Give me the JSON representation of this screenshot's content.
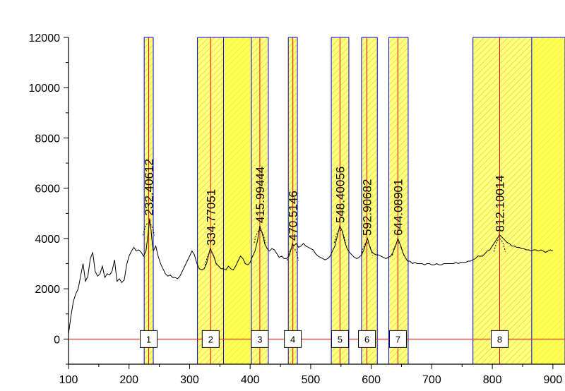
{
  "chart_data": {
    "type": "line",
    "title": "",
    "xlabel": "",
    "ylabel": "",
    "xlim": [
      100,
      920
    ],
    "ylim": [
      -1000,
      12000
    ],
    "xticks": [
      100,
      200,
      300,
      400,
      500,
      600,
      700,
      800,
      900
    ],
    "yticks": [
      0,
      2000,
      4000,
      6000,
      8000,
      10000,
      12000
    ],
    "series": [
      {
        "values": [
          [
            100,
            200
          ],
          [
            104,
            900
          ],
          [
            108,
            1500
          ],
          [
            112,
            1800
          ],
          [
            116,
            2000
          ],
          [
            120,
            2500
          ],
          [
            124,
            3000
          ],
          [
            128,
            2300
          ],
          [
            132,
            2500
          ],
          [
            136,
            3200
          ],
          [
            140,
            3450
          ],
          [
            144,
            2700
          ],
          [
            148,
            2500
          ],
          [
            152,
            2600
          ],
          [
            156,
            2900
          ],
          [
            160,
            2450
          ],
          [
            164,
            2600
          ],
          [
            168,
            2550
          ],
          [
            172,
            2700
          ],
          [
            176,
            3150
          ],
          [
            180,
            2300
          ],
          [
            184,
            2400
          ],
          [
            188,
            2250
          ],
          [
            192,
            2350
          ],
          [
            196,
            2950
          ],
          [
            200,
            3300
          ],
          [
            204,
            3500
          ],
          [
            208,
            3650
          ],
          [
            212,
            3500
          ],
          [
            216,
            3550
          ],
          [
            220,
            3450
          ],
          [
            224,
            3300
          ],
          [
            228,
            3500
          ],
          [
            232,
            4300
          ],
          [
            234,
            4800
          ],
          [
            236,
            4400
          ],
          [
            238,
            3900
          ],
          [
            240,
            3500
          ],
          [
            244,
            3700
          ],
          [
            248,
            3300
          ],
          [
            252,
            3000
          ],
          [
            256,
            2800
          ],
          [
            260,
            2600
          ],
          [
            264,
            2500
          ],
          [
            268,
            2550
          ],
          [
            272,
            2450
          ],
          [
            276,
            2450
          ],
          [
            280,
            2400
          ],
          [
            284,
            2500
          ],
          [
            288,
            2700
          ],
          [
            292,
            2900
          ],
          [
            296,
            3100
          ],
          [
            300,
            3300
          ],
          [
            304,
            3500
          ],
          [
            308,
            3350
          ],
          [
            312,
            3000
          ],
          [
            316,
            2800
          ],
          [
            320,
            2750
          ],
          [
            324,
            2800
          ],
          [
            328,
            3000
          ],
          [
            332,
            3400
          ],
          [
            334,
            3600
          ],
          [
            336,
            3500
          ],
          [
            340,
            3300
          ],
          [
            344,
            3000
          ],
          [
            348,
            2900
          ],
          [
            352,
            2800
          ],
          [
            356,
            2800
          ],
          [
            360,
            2750
          ],
          [
            364,
            2900
          ],
          [
            368,
            2800
          ],
          [
            372,
            2750
          ],
          [
            376,
            2900
          ],
          [
            380,
            3100
          ],
          [
            384,
            3300
          ],
          [
            388,
            3200
          ],
          [
            392,
            3000
          ],
          [
            396,
            2950
          ],
          [
            400,
            3050
          ],
          [
            404,
            3300
          ],
          [
            408,
            3500
          ],
          [
            412,
            3900
          ],
          [
            416,
            4500
          ],
          [
            420,
            4200
          ],
          [
            424,
            3800
          ],
          [
            428,
            3600
          ],
          [
            432,
            3500
          ],
          [
            436,
            3600
          ],
          [
            440,
            3550
          ],
          [
            444,
            3400
          ],
          [
            448,
            3250
          ],
          [
            452,
            3300
          ],
          [
            456,
            3200
          ],
          [
            460,
            3200
          ],
          [
            464,
            3300
          ],
          [
            468,
            3600
          ],
          [
            470,
            3800
          ],
          [
            472,
            3700
          ],
          [
            476,
            3800
          ],
          [
            480,
            3650
          ],
          [
            484,
            3700
          ],
          [
            488,
            3800
          ],
          [
            492,
            3700
          ],
          [
            496,
            3650
          ],
          [
            500,
            3600
          ],
          [
            504,
            3550
          ],
          [
            508,
            3400
          ],
          [
            512,
            3300
          ],
          [
            516,
            3250
          ],
          [
            520,
            3200
          ],
          [
            524,
            3150
          ],
          [
            528,
            3200
          ],
          [
            532,
            3300
          ],
          [
            536,
            3500
          ],
          [
            540,
            3700
          ],
          [
            544,
            4100
          ],
          [
            548,
            4500
          ],
          [
            552,
            4300
          ],
          [
            556,
            3900
          ],
          [
            560,
            3600
          ],
          [
            564,
            3450
          ],
          [
            568,
            3350
          ],
          [
            572,
            3250
          ],
          [
            576,
            3200
          ],
          [
            580,
            3250
          ],
          [
            584,
            3350
          ],
          [
            588,
            3550
          ],
          [
            592,
            3900
          ],
          [
            594,
            4000
          ],
          [
            596,
            3800
          ],
          [
            600,
            3500
          ],
          [
            604,
            3400
          ],
          [
            608,
            3350
          ],
          [
            612,
            3350
          ],
          [
            616,
            3300
          ],
          [
            620,
            3250
          ],
          [
            624,
            3200
          ],
          [
            628,
            3250
          ],
          [
            632,
            3300
          ],
          [
            636,
            3450
          ],
          [
            640,
            3700
          ],
          [
            644,
            4000
          ],
          [
            648,
            3750
          ],
          [
            652,
            3450
          ],
          [
            656,
            3250
          ],
          [
            660,
            3100
          ],
          [
            664,
            3100
          ],
          [
            668,
            3000
          ],
          [
            672,
            3050
          ],
          [
            676,
            3000
          ],
          [
            680,
            3000
          ],
          [
            684,
            3000
          ],
          [
            688,
            2950
          ],
          [
            692,
            3000
          ],
          [
            696,
            3000
          ],
          [
            700,
            2950
          ],
          [
            704,
            2950
          ],
          [
            708,
            3000
          ],
          [
            712,
            2950
          ],
          [
            716,
            2950
          ],
          [
            720,
            3000
          ],
          [
            724,
            3000
          ],
          [
            728,
            3000
          ],
          [
            732,
            3000
          ],
          [
            736,
            3000
          ],
          [
            740,
            3050
          ],
          [
            744,
            3000
          ],
          [
            748,
            3050
          ],
          [
            752,
            3050
          ],
          [
            756,
            3050
          ],
          [
            760,
            3100
          ],
          [
            764,
            3100
          ],
          [
            768,
            3150
          ],
          [
            772,
            3200
          ],
          [
            776,
            3300
          ],
          [
            780,
            3300
          ],
          [
            784,
            3300
          ],
          [
            788,
            3400
          ],
          [
            792,
            3500
          ],
          [
            796,
            3550
          ],
          [
            800,
            3700
          ],
          [
            804,
            3850
          ],
          [
            808,
            4000
          ],
          [
            812,
            4150
          ],
          [
            816,
            4050
          ],
          [
            820,
            3950
          ],
          [
            824,
            3850
          ],
          [
            828,
            3800
          ],
          [
            832,
            3700
          ],
          [
            836,
            3700
          ],
          [
            840,
            3650
          ],
          [
            844,
            3650
          ],
          [
            848,
            3600
          ],
          [
            852,
            3600
          ],
          [
            856,
            3550
          ],
          [
            860,
            3550
          ],
          [
            864,
            3500
          ],
          [
            868,
            3550
          ],
          [
            872,
            3550
          ],
          [
            876,
            3500
          ],
          [
            880,
            3550
          ],
          [
            884,
            3500
          ],
          [
            888,
            3450
          ],
          [
            892,
            3500
          ],
          [
            896,
            3550
          ],
          [
            900,
            3500
          ]
        ]
      }
    ],
    "regions": [
      {
        "start": 225,
        "end": 240,
        "peak": 232.40612,
        "peak_label": "232.40612",
        "baseline_y": 4800,
        "box_label": "1"
      },
      {
        "start": 313,
        "end": 402,
        "inner_boundary": 356,
        "peak": 334.77051,
        "peak_label": "334.77051",
        "baseline_y": 3600,
        "box_label": "2"
      },
      {
        "start": 402,
        "end": 430,
        "peak": 415.99444,
        "peak_label": "415.99444",
        "baseline_y": 4500,
        "box_label": "3"
      },
      {
        "start": 463,
        "end": 478,
        "peak": 470.5146,
        "peak_label": "470.5146",
        "baseline_y": 3800,
        "box_label": "4"
      },
      {
        "start": 534,
        "end": 563,
        "peak": 548.40056,
        "peak_label": "548.40056",
        "baseline_y": 4500,
        "box_label": "5"
      },
      {
        "start": 584,
        "end": 610,
        "peak": 592.90682,
        "peak_label": "592.90682",
        "baseline_y": 4000,
        "box_label": "6"
      },
      {
        "start": 629,
        "end": 661,
        "peak": 644.08901,
        "peak_label": "644.08901",
        "baseline_y": 4000,
        "box_label": "7"
      },
      {
        "start": 768,
        "end": 920,
        "inner_boundary": 865,
        "peak": 812.10014,
        "peak_label": "812.10014",
        "baseline_y": 4150,
        "box_label": "8"
      }
    ],
    "colors": {
      "curve": "#000000",
      "peak_line": "#ff0000",
      "region_fill": "#ffff66",
      "region_fill_strong": "#ffff33",
      "region_border": "#0000ff",
      "baseline": "#ff0000"
    },
    "grid": false,
    "legend": "none"
  }
}
